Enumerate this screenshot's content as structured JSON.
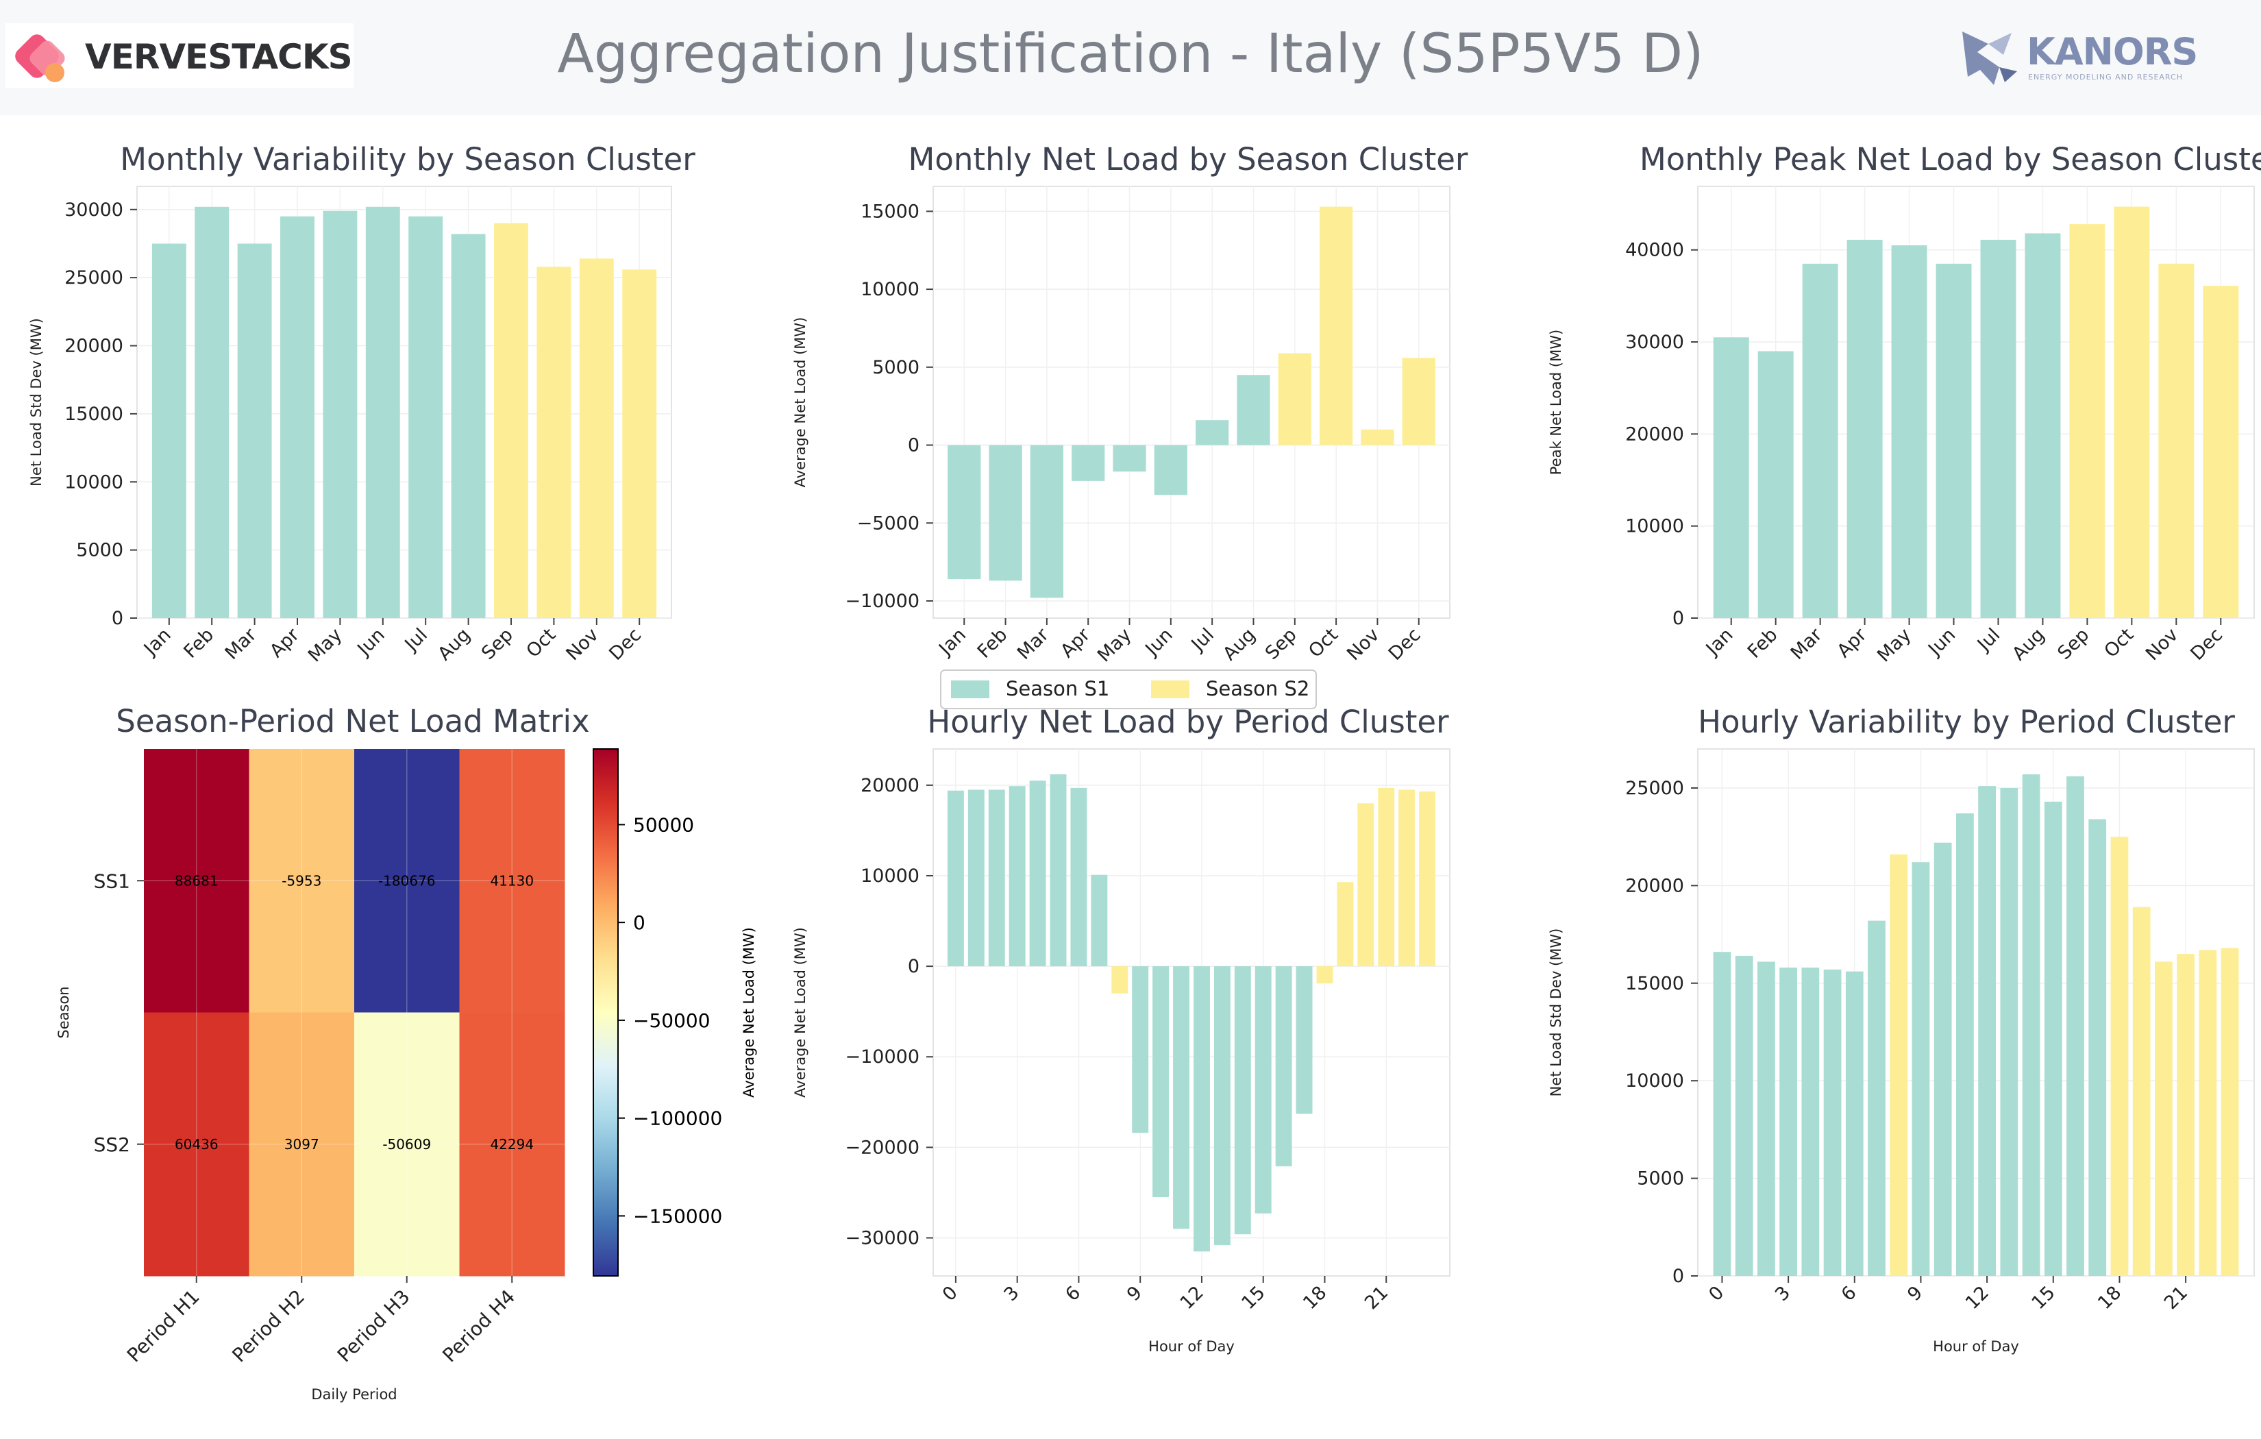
{
  "header": {
    "title": "Aggregation Justification - Italy (S5P5V5 D)",
    "logo_left": "VERVESTACKS",
    "logo_right": "KANORS",
    "logo_right_sub": "ENERGY MODELING AND RESEARCH"
  },
  "colors": {
    "season_s1": "#a9ddd3",
    "season_s2": "#fdee96"
  },
  "legend": {
    "items": [
      "Season S1",
      "Season S2"
    ]
  },
  "chart_data": [
    {
      "type": "bar",
      "title": "Monthly Variability by Season Cluster",
      "xlabel": "",
      "ylabel": "Net Load Std Dev (MW)",
      "categories": [
        "Jan",
        "Feb",
        "Mar",
        "Apr",
        "May",
        "Jun",
        "Jul",
        "Aug",
        "Sep",
        "Oct",
        "Nov",
        "Dec"
      ],
      "values": [
        27500,
        30200,
        27500,
        29500,
        29900,
        30200,
        29500,
        28200,
        29000,
        25800,
        26400,
        25600
      ],
      "season": [
        "S1",
        "S1",
        "S1",
        "S1",
        "S1",
        "S1",
        "S1",
        "S1",
        "S2",
        "S2",
        "S2",
        "S2"
      ],
      "ylim": [
        0,
        31700
      ],
      "yticks": [
        0,
        5000,
        10000,
        15000,
        20000,
        25000,
        30000
      ],
      "grid": true
    },
    {
      "type": "bar",
      "title": "Monthly Net Load by Season Cluster",
      "xlabel": "",
      "ylabel": "Average Net Load (MW)",
      "categories": [
        "Jan",
        "Feb",
        "Mar",
        "Apr",
        "May",
        "Jun",
        "Jul",
        "Aug",
        "Sep",
        "Oct",
        "Nov",
        "Dec"
      ],
      "values": [
        -8600,
        -8700,
        -9800,
        -2300,
        -1700,
        -3200,
        1600,
        4500,
        5900,
        15300,
        1000,
        5600
      ],
      "season": [
        "S1",
        "S1",
        "S1",
        "S1",
        "S1",
        "S1",
        "S1",
        "S1",
        "S2",
        "S2",
        "S2",
        "S2"
      ],
      "ylim": [
        -11100,
        16600
      ],
      "yticks": [
        -10000,
        -5000,
        0,
        5000,
        10000,
        15000
      ],
      "grid": true
    },
    {
      "type": "bar",
      "title": "Monthly Peak Net Load by Season Cluster",
      "xlabel": "",
      "ylabel": "Peak Net Load (MW)",
      "categories": [
        "Jan",
        "Feb",
        "Mar",
        "Apr",
        "May",
        "Jun",
        "Jul",
        "Aug",
        "Sep",
        "Oct",
        "Nov",
        "Dec"
      ],
      "values": [
        30500,
        29000,
        38500,
        41100,
        40500,
        38500,
        41100,
        41800,
        42800,
        44700,
        38500,
        36100
      ],
      "season": [
        "S1",
        "S1",
        "S1",
        "S1",
        "S1",
        "S1",
        "S1",
        "S1",
        "S2",
        "S2",
        "S2",
        "S2"
      ],
      "ylim": [
        0,
        46900
      ],
      "yticks": [
        0,
        10000,
        20000,
        30000,
        40000
      ],
      "grid": true
    },
    {
      "type": "heatmap",
      "title": "Season-Period Net Load Matrix",
      "xlabel": "Daily Period",
      "ylabel": "Season",
      "colorbar_label": "Average Net Load (MW)",
      "x": [
        "Period H1",
        "Period H2",
        "Period H3",
        "Period H4"
      ],
      "y": [
        "SS1",
        "SS2"
      ],
      "values": [
        [
          88681,
          -5953,
          -180676,
          41130
        ],
        [
          60436,
          3097,
          -50609,
          42294
        ]
      ],
      "labels": [
        [
          "88681",
          "-5953",
          "-180676",
          "41130"
        ],
        [
          "60436",
          "3097",
          "-50609",
          "42294"
        ]
      ],
      "vmin": -180676,
      "vmax": 88681,
      "colorbar_ticks": [
        50000,
        0,
        -50000,
        -100000,
        -150000
      ],
      "colorbar_tick_labels": [
        "50000",
        "0",
        "−50000",
        "−100000",
        "−150000"
      ]
    },
    {
      "type": "bar",
      "title": "Hourly Net Load by Period Cluster",
      "xlabel": "Hour of Day",
      "ylabel": "Average Net Load (MW)",
      "x": [
        0,
        1,
        2,
        3,
        4,
        5,
        6,
        7,
        8,
        9,
        10,
        11,
        12,
        13,
        14,
        15,
        16,
        17,
        18,
        19,
        20,
        21,
        22,
        23
      ],
      "values": [
        19400,
        19500,
        19500,
        19900,
        20500,
        21200,
        19700,
        10100,
        -3000,
        -18400,
        -25500,
        -29000,
        -31500,
        -30800,
        -29600,
        -27300,
        -22100,
        -16300,
        -1900,
        9300,
        18000,
        19700,
        19500,
        19300
      ],
      "season": [
        "S1",
        "S1",
        "S1",
        "S1",
        "S1",
        "S1",
        "S1",
        "S1",
        "S2",
        "S1",
        "S1",
        "S1",
        "S1",
        "S1",
        "S1",
        "S1",
        "S1",
        "S1",
        "S2",
        "S2",
        "S2",
        "S2",
        "S2",
        "S2"
      ],
      "ylim": [
        -34200,
        24000
      ],
      "xticks": [
        0,
        3,
        6,
        9,
        12,
        15,
        18,
        21
      ],
      "yticks": [
        -30000,
        -20000,
        -10000,
        0,
        10000,
        20000
      ],
      "grid": true
    },
    {
      "type": "bar",
      "title": "Hourly Variability by Period Cluster",
      "xlabel": "Hour of Day",
      "ylabel": "Net Load Std Dev (MW)",
      "x": [
        0,
        1,
        2,
        3,
        4,
        5,
        6,
        7,
        8,
        9,
        10,
        11,
        12,
        13,
        14,
        15,
        16,
        17,
        18,
        19,
        20,
        21,
        22,
        23
      ],
      "values": [
        16600,
        16400,
        16100,
        15800,
        15800,
        15700,
        15600,
        18200,
        21600,
        21200,
        22200,
        23700,
        25100,
        25000,
        25700,
        24300,
        25600,
        23400,
        22500,
        18900,
        16100,
        16500,
        16700,
        16800
      ],
      "season": [
        "S1",
        "S1",
        "S1",
        "S1",
        "S1",
        "S1",
        "S1",
        "S1",
        "S2",
        "S1",
        "S1",
        "S1",
        "S1",
        "S1",
        "S1",
        "S1",
        "S1",
        "S1",
        "S2",
        "S2",
        "S2",
        "S2",
        "S2",
        "S2"
      ],
      "ylim": [
        0,
        27000
      ],
      "xticks": [
        0,
        3,
        6,
        9,
        12,
        15,
        18,
        21
      ],
      "yticks": [
        0,
        5000,
        10000,
        15000,
        20000,
        25000
      ],
      "grid": true
    }
  ]
}
